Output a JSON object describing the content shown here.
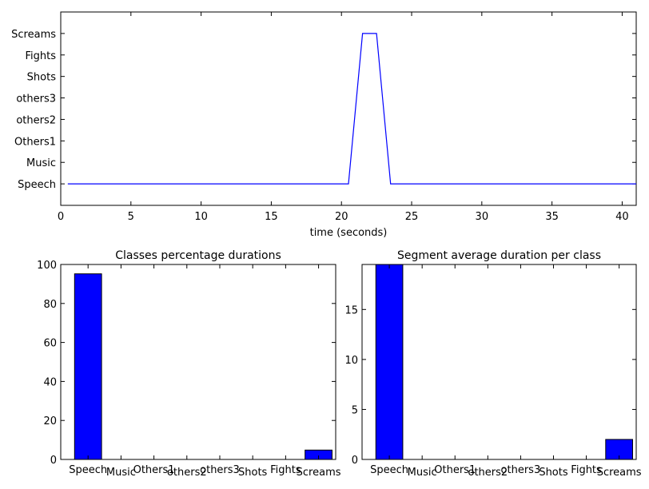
{
  "chart_data": [
    {
      "type": "line",
      "title": "",
      "xlabel": "time (seconds)",
      "ylabel": "",
      "xlim": [
        0,
        41
      ],
      "ylim": [
        -1,
        8
      ],
      "x_ticks": [
        0,
        5,
        10,
        15,
        20,
        25,
        30,
        35,
        40
      ],
      "y_categories": [
        "Speech",
        "Music",
        "Others1",
        "others2",
        "others3",
        "Shots",
        "Fights",
        "Screams"
      ],
      "grid": false,
      "color": "#0000ff",
      "series": [
        {
          "x": [
            0.5,
            20.5,
            21.5,
            22.5,
            23.5,
            41
          ],
          "y": [
            0,
            0,
            7,
            7,
            0,
            0
          ]
        }
      ]
    },
    {
      "type": "bar",
      "title": "Classes percentage durations",
      "xlabel": "",
      "ylabel": "",
      "ylim": [
        0,
        100
      ],
      "y_ticks": [
        0,
        20,
        40,
        60,
        80,
        100
      ],
      "grid": false,
      "color": "#0000ff",
      "categories": [
        "Speech",
        "Music",
        "Others1",
        "others2",
        "others3",
        "Shots",
        "Fights",
        "Screams"
      ],
      "values": [
        95.2,
        0,
        0,
        0,
        0,
        0,
        0,
        4.8
      ]
    },
    {
      "type": "bar",
      "title": "Segment average duration per class",
      "xlabel": "",
      "ylabel": "",
      "ylim": [
        0,
        19.5
      ],
      "y_ticks": [
        0,
        5,
        10,
        15
      ],
      "grid": false,
      "color": "#0000ff",
      "categories": [
        "Speech",
        "Music",
        "Others1",
        "others2",
        "others3",
        "Shots",
        "Fights",
        "Screams"
      ],
      "values": [
        19.5,
        0,
        0,
        0,
        0,
        0,
        0,
        2.0
      ]
    }
  ]
}
